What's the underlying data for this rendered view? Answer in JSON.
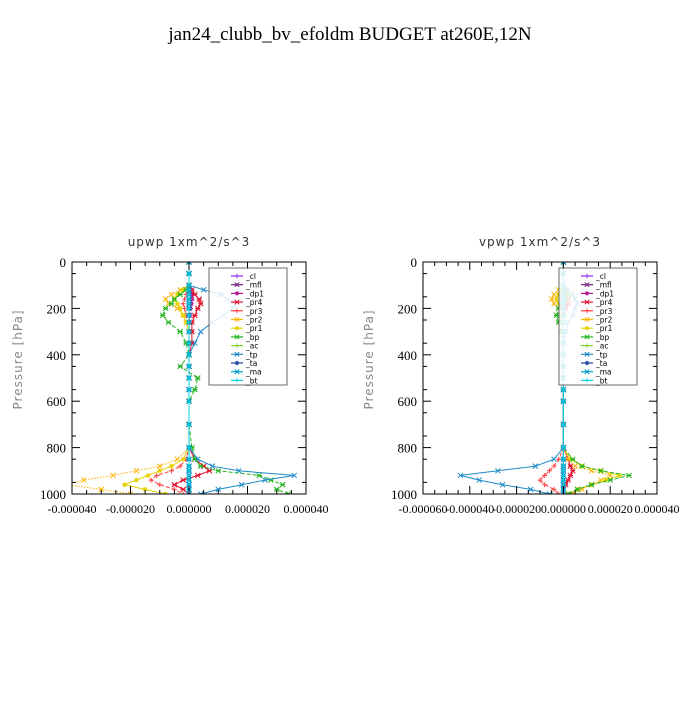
{
  "page_title": "jan24_clubb_bv_efoldm  BUDGET at260E,12N",
  "chart_data": [
    {
      "type": "line",
      "title": "upwp   1xm^2/s^3",
      "ylabel": "Pressure [hPa]",
      "xlabel": "",
      "xlim": [
        -4e-05,
        4e-05
      ],
      "ylim": [
        1000,
        0
      ],
      "xticks": [
        -4e-05,
        -2e-05,
        0,
        2e-05,
        4e-05
      ],
      "xtick_labels": [
        "-0.000040",
        "-0.000020",
        "0.000000",
        "0.000020",
        "0.000040"
      ],
      "yticks": [
        0,
        200,
        400,
        600,
        800,
        1000
      ],
      "ytick_labels": [
        "0",
        "200",
        "400",
        "600",
        "800",
        "1000"
      ],
      "legend_position": "top-right",
      "pressure": [
        0,
        50,
        100,
        120,
        140,
        160,
        180,
        200,
        230,
        260,
        300,
        350,
        400,
        450,
        500,
        550,
        600,
        700,
        800,
        850,
        880,
        900,
        920,
        940,
        960,
        980,
        1000
      ],
      "series": [
        {
          "name": "_cl",
          "color": "#8a2be2",
          "values": [
            0,
            0,
            0,
            0,
            0,
            0,
            0,
            0,
            0,
            0,
            0,
            0,
            0,
            0,
            0,
            0,
            0,
            0,
            0,
            0,
            0,
            0,
            0,
            0,
            0,
            0,
            0
          ]
        },
        {
          "name": "_mfl",
          "color": "#7a1f7a",
          "values": [
            0,
            0,
            0,
            0,
            0,
            0,
            0,
            0,
            0,
            0,
            0,
            0,
            0,
            0,
            0,
            0,
            0,
            0,
            0,
            0,
            0,
            0,
            0,
            0,
            0,
            0,
            0
          ]
        },
        {
          "name": "_dp1",
          "color": "#b0148c",
          "values": [
            0,
            0,
            0,
            5e-07,
            1e-06,
            1e-06,
            8e-07,
            5e-07,
            3e-07,
            0,
            0,
            0,
            0,
            0,
            0,
            0,
            0,
            0,
            0,
            0,
            0,
            0,
            0,
            0,
            0,
            0,
            0
          ]
        },
        {
          "name": "_pr4",
          "color": "#e0102c",
          "values": [
            0,
            0,
            0,
            1e-06,
            2e-06,
            3.5e-06,
            4e-06,
            3e-06,
            2e-06,
            1e-06,
            1e-06,
            1e-06,
            0,
            0,
            0,
            0,
            0,
            0,
            0,
            2e-06,
            5e-06,
            7e-06,
            3e-06,
            -2e-06,
            -5e-06,
            -2e-06,
            0
          ]
        },
        {
          "name": "_pr3",
          "color": "#ff4040",
          "values": [
            0,
            0,
            0,
            0,
            -1e-06,
            -1.5e-06,
            -2e-06,
            -1.5e-06,
            -1e-06,
            0,
            0,
            0,
            0,
            0,
            0,
            0,
            0,
            0,
            0,
            -1e-06,
            -3e-06,
            -6e-06,
            -1.1e-05,
            -1.3e-05,
            -1e-05,
            -5e-06,
            -2e-06
          ]
        },
        {
          "name": "_pr2",
          "color": "#ffb000",
          "values": [
            0,
            0,
            0,
            -3e-06,
            -6e-06,
            -8e-06,
            -7e-06,
            -4e-06,
            -2e-06,
            -1e-06,
            0,
            0,
            0,
            0,
            0,
            0,
            0,
            0,
            0,
            -4e-06,
            -1e-05,
            -1.8e-05,
            -2.6e-05,
            -3.6e-05,
            -4.2e-05,
            -3e-05,
            -2e-05
          ]
        },
        {
          "name": "_pr1",
          "color": "#e6d200",
          "values": [
            0,
            0,
            0,
            -2e-06,
            -4e-06,
            -5e-06,
            -4e-06,
            -3e-06,
            -2e-06,
            -1e-06,
            0,
            0,
            0,
            0,
            0,
            0,
            0,
            0,
            0,
            -2e-06,
            -6e-06,
            -1e-05,
            -1.4e-05,
            -1.8e-05,
            -2.2e-05,
            -1.5e-05,
            -8e-06
          ]
        },
        {
          "name": "_bp",
          "color": "#22b41e",
          "values": [
            0,
            0,
            0,
            -1e-06,
            -3e-06,
            -5e-06,
            -6e-06,
            -8e-06,
            -9e-06,
            -7e-06,
            -3e-06,
            -1e-06,
            0,
            -3e-06,
            3e-06,
            2e-06,
            0,
            0,
            1e-06,
            2e-06,
            4e-06,
            1e-05,
            2.4e-05,
            2.8e-05,
            3.2e-05,
            3e-05,
            3.4e-05
          ]
        },
        {
          "name": "_ac",
          "color": "#7dd12a",
          "values": [
            0,
            0,
            0,
            0,
            0,
            0,
            0,
            0,
            0,
            0,
            0,
            0,
            0,
            0,
            0,
            0,
            0,
            0,
            0,
            0,
            0,
            0,
            0,
            0,
            0,
            0,
            0
          ]
        },
        {
          "name": "_tp",
          "color": "#1e8cc8",
          "values": [
            0,
            0,
            0,
            5e-06,
            1.1e-05,
            1.3e-05,
            1.6e-05,
            1.5e-05,
            1.2e-05,
            8e-06,
            4e-06,
            2e-06,
            0,
            0,
            0,
            0,
            0,
            0,
            0,
            3e-06,
            8e-06,
            1.7e-05,
            3.6e-05,
            2.6e-05,
            1.8e-05,
            1e-05,
            4e-06
          ]
        },
        {
          "name": "_ta",
          "color": "#1a3fa0",
          "values": [
            0,
            0,
            0,
            0,
            0,
            0,
            0,
            0,
            0,
            0,
            0,
            0,
            0,
            0,
            0,
            0,
            0,
            0,
            0,
            0,
            0,
            0,
            0,
            0,
            0,
            0,
            0
          ]
        },
        {
          "name": "_ma",
          "color": "#00a0d0",
          "values": [
            0,
            0,
            0,
            0,
            0,
            0,
            0,
            0,
            0,
            0,
            0,
            0,
            0,
            0,
            0,
            0,
            0,
            0,
            0,
            0,
            0,
            0,
            0,
            0,
            0,
            0,
            0
          ]
        },
        {
          "name": "_bt",
          "color": "#00d0e0",
          "values": [
            0,
            0,
            0,
            0,
            0,
            0,
            0,
            0,
            0,
            0,
            0,
            0,
            0,
            0,
            0,
            0,
            0,
            0,
            0,
            0,
            0,
            0,
            0,
            0,
            0,
            0,
            0
          ]
        }
      ]
    },
    {
      "type": "line",
      "title": "vpwp   1xm^2/s^3",
      "ylabel": "Pressure [hPa]",
      "xlabel": "",
      "xlim": [
        -6e-05,
        4e-05
      ],
      "ylim": [
        1000,
        0
      ],
      "xticks": [
        -6e-05,
        -4e-05,
        -2e-05,
        0,
        2e-05,
        4e-05
      ],
      "xtick_labels": [
        "-0.000060",
        "-0.000040",
        "-0.000020",
        "0.000000",
        "0.000020",
        "0.000040"
      ],
      "yticks": [
        0,
        200,
        400,
        600,
        800,
        1000
      ],
      "ytick_labels": [
        "0",
        "200",
        "400",
        "600",
        "800",
        "1000"
      ],
      "legend_position": "top-right",
      "pressure": [
        0,
        50,
        100,
        120,
        140,
        160,
        180,
        200,
        230,
        260,
        300,
        350,
        400,
        450,
        500,
        550,
        600,
        700,
        800,
        850,
        880,
        900,
        920,
        940,
        960,
        980,
        1000
      ],
      "series": [
        {
          "name": "_cl",
          "color": "#8a2be2",
          "values": [
            0,
            0,
            0,
            0,
            0,
            0,
            0,
            0,
            0,
            0,
            0,
            0,
            0,
            0,
            0,
            0,
            0,
            0,
            0,
            0,
            0,
            0,
            0,
            0,
            0,
            0,
            0
          ]
        },
        {
          "name": "_mfl",
          "color": "#7a1f7a",
          "values": [
            0,
            0,
            0,
            0,
            0,
            0,
            0,
            0,
            0,
            0,
            0,
            0,
            0,
            0,
            0,
            0,
            0,
            0,
            0,
            0,
            0,
            0,
            0,
            0,
            0,
            0,
            0
          ]
        },
        {
          "name": "_dp1",
          "color": "#b0148c",
          "values": [
            0,
            0,
            0,
            0,
            1e-06,
            1e-06,
            1e-06,
            0,
            0,
            0,
            0,
            0,
            0,
            0,
            0,
            0,
            0,
            0,
            0,
            0,
            0,
            0,
            0,
            0,
            0,
            0,
            0
          ]
        },
        {
          "name": "_pr4",
          "color": "#e0102c",
          "values": [
            0,
            0,
            0,
            0,
            1e-06,
            2e-06,
            2e-06,
            1e-06,
            0,
            0,
            0,
            0,
            0,
            0,
            0,
            0,
            0,
            0,
            0,
            2e-06,
            3e-06,
            4e-06,
            3e-06,
            2e-06,
            1e-06,
            0,
            0
          ]
        },
        {
          "name": "_pr3",
          "color": "#ff4040",
          "values": [
            0,
            0,
            0,
            0,
            -1e-06,
            -1e-06,
            -1e-06,
            0,
            0,
            0,
            0,
            0,
            0,
            0,
            0,
            0,
            0,
            0,
            0,
            -2e-06,
            -4e-06,
            -6e-06,
            -8e-06,
            -1e-05,
            -8e-06,
            -4e-06,
            -2e-06
          ]
        },
        {
          "name": "_pr2",
          "color": "#ffb000",
          "values": [
            0,
            0,
            0,
            -2e-06,
            -4e-06,
            -5e-06,
            -4e-06,
            -2e-06,
            -1e-06,
            0,
            0,
            0,
            0,
            0,
            0,
            0,
            0,
            0,
            0,
            2e-06,
            5e-06,
            1.2e-05,
            2e-05,
            1.6e-05,
            1.2e-05,
            8e-06,
            4e-06
          ]
        },
        {
          "name": "_pr1",
          "color": "#e6d200",
          "values": [
            0,
            0,
            0,
            -1e-06,
            -2e-06,
            -3e-06,
            -2e-06,
            -1e-06,
            0,
            0,
            0,
            0,
            0,
            0,
            0,
            0,
            0,
            0,
            0,
            3e-06,
            8e-06,
            1.6e-05,
            2.4e-05,
            1.8e-05,
            1.2e-05,
            6e-06,
            2e-06
          ]
        },
        {
          "name": "_bp",
          "color": "#22b41e",
          "values": [
            0,
            0,
            0,
            1e-06,
            2e-06,
            1e-06,
            -1e-06,
            -2e-06,
            -3e-06,
            -2e-06,
            -1e-06,
            0,
            0,
            0,
            0,
            0,
            0,
            0,
            0,
            4e-06,
            8e-06,
            1.6e-05,
            2.8e-05,
            2e-05,
            1.2e-05,
            6e-06,
            2e-06
          ]
        },
        {
          "name": "_ac",
          "color": "#7dd12a",
          "values": [
            0,
            0,
            0,
            0,
            0,
            0,
            0,
            0,
            0,
            0,
            0,
            0,
            0,
            0,
            0,
            0,
            0,
            0,
            0,
            0,
            0,
            0,
            0,
            0,
            0,
            0,
            0
          ]
        },
        {
          "name": "_tp",
          "color": "#1e8cc8",
          "values": [
            0,
            0,
            0,
            2e-06,
            4e-06,
            5e-06,
            6e-06,
            5e-06,
            4e-06,
            2e-06,
            1e-06,
            0,
            0,
            0,
            0,
            0,
            0,
            0,
            0,
            -4e-06,
            -1.2e-05,
            -2.8e-05,
            -4.4e-05,
            -3.6e-05,
            -2.6e-05,
            -1.4e-05,
            -6e-06
          ]
        },
        {
          "name": "_ta",
          "color": "#1a3fa0",
          "values": [
            0,
            0,
            0,
            0,
            0,
            0,
            0,
            0,
            0,
            0,
            0,
            0,
            0,
            0,
            0,
            0,
            0,
            0,
            0,
            0,
            0,
            0,
            0,
            0,
            0,
            0,
            0
          ]
        },
        {
          "name": "_ma",
          "color": "#00a0d0",
          "values": [
            0,
            0,
            0,
            0,
            0,
            0,
            0,
            0,
            0,
            0,
            0,
            0,
            0,
            0,
            0,
            0,
            0,
            0,
            0,
            0,
            0,
            0,
            0,
            0,
            0,
            0,
            0
          ]
        },
        {
          "name": "_bt",
          "color": "#00d0e0",
          "values": [
            0,
            0,
            0,
            0,
            0,
            0,
            0,
            0,
            0,
            0,
            0,
            0,
            0,
            0,
            0,
            0,
            0,
            0,
            0,
            0,
            0,
            0,
            0,
            0,
            0,
            0,
            0
          ]
        }
      ]
    }
  ]
}
